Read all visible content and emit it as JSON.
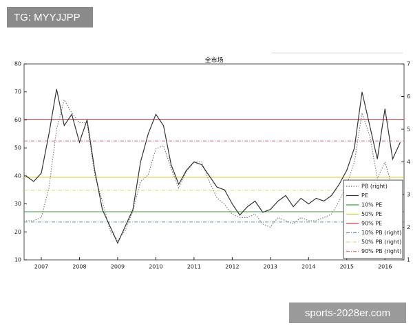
{
  "chart_data": {
    "type": "line",
    "title": "全市场",
    "x": [
      2006.6,
      2006.8,
      2007.0,
      2007.2,
      2007.4,
      2007.6,
      2007.8,
      2008.0,
      2008.2,
      2008.4,
      2008.6,
      2008.8,
      2009.0,
      2009.2,
      2009.4,
      2009.6,
      2009.8,
      2010.0,
      2010.2,
      2010.4,
      2010.6,
      2010.8,
      2011.0,
      2011.2,
      2011.4,
      2011.6,
      2011.8,
      2012.0,
      2012.2,
      2012.4,
      2012.6,
      2012.8,
      2013.0,
      2013.2,
      2013.4,
      2013.6,
      2013.8,
      2014.0,
      2014.2,
      2014.4,
      2014.6,
      2014.8,
      2015.0,
      2015.2,
      2015.4,
      2015.6,
      2015.8,
      2016.0,
      2016.2,
      2016.4
    ],
    "series": [
      {
        "name": "PB (right)",
        "color": "#777777",
        "style": "dotted",
        "axis": "y2",
        "values": [
          2.2,
          2.2,
          2.3,
          3.2,
          5.0,
          5.9,
          5.5,
          5.2,
          5.2,
          3.6,
          2.8,
          1.9,
          1.6,
          1.9,
          2.5,
          3.4,
          3.6,
          4.4,
          4.5,
          3.8,
          3.2,
          3.7,
          4.0,
          4.0,
          3.4,
          2.9,
          2.7,
          2.4,
          2.3,
          2.3,
          2.4,
          2.1,
          2.0,
          2.3,
          2.2,
          2.1,
          2.3,
          2.2,
          2.2,
          2.3,
          2.4,
          2.8,
          3.3,
          4.0,
          5.5,
          4.8,
          3.5,
          4.0,
          3.2,
          3.3
        ]
      },
      {
        "name": "PE",
        "color": "#333333",
        "style": "solid",
        "values": [
          40,
          38,
          41,
          55,
          71,
          58,
          62,
          52,
          60,
          42,
          28,
          22,
          16,
          22,
          28,
          45,
          55,
          62,
          58,
          44,
          37,
          42,
          45,
          44,
          40,
          36,
          35,
          30,
          26,
          29,
          31,
          27,
          28,
          31,
          33,
          29,
          32,
          30,
          32,
          31,
          33,
          37,
          42,
          50,
          70,
          58,
          46,
          64,
          46,
          52
        ]
      }
    ],
    "reference_lines": [
      {
        "name": "10% PE",
        "color": "#3a9a3a",
        "style": "solid",
        "value": 27.2
      },
      {
        "name": "50% PE",
        "color": "#c9c930",
        "style": "solid",
        "value": 39.5
      },
      {
        "name": "90% PE",
        "color": "#d04040",
        "style": "solid",
        "value": 60.2
      },
      {
        "name": "10% PB (right)",
        "color": "#6a9aa0",
        "style": "dashdot",
        "value": 2.16,
        "axis": "y2"
      },
      {
        "name": "50% PB (right)",
        "color": "#d8d880",
        "style": "dashdot",
        "value": 3.13,
        "axis": "y2"
      },
      {
        "name": "90% PB (right)",
        "color": "#e07080",
        "style": "dashdot",
        "value": 4.64,
        "axis": "y2"
      }
    ],
    "xlim": [
      2006.55,
      2016.5
    ],
    "xticks": [
      2007,
      2008,
      2009,
      2010,
      2011,
      2012,
      2013,
      2014,
      2015,
      2016
    ],
    "ylim": [
      10,
      80
    ],
    "yticks": [
      10,
      20,
      30,
      40,
      50,
      60,
      70,
      80
    ],
    "y2lim": [
      1,
      7
    ],
    "y2ticks": [
      1,
      2,
      3,
      4,
      5,
      6,
      7
    ],
    "grid": false,
    "legend": "lower right"
  },
  "watermarks": [
    "TG: MYYJJPP",
    "sports-2028er.com"
  ]
}
